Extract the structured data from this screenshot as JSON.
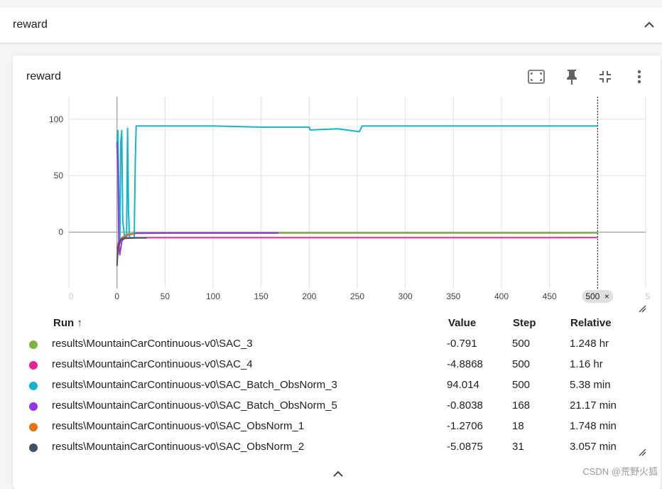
{
  "group": {
    "title": "reward"
  },
  "card": {
    "title": "reward",
    "toolbar": [
      {
        "name": "fit-domain-icon"
      },
      {
        "name": "pin-icon"
      },
      {
        "name": "collapse-chart-icon"
      },
      {
        "name": "more-vert-icon"
      }
    ]
  },
  "chart_data": {
    "type": "line",
    "title": "reward",
    "xlabel": "",
    "ylabel": "",
    "xlim": [
      -50,
      550
    ],
    "ylim": [
      -50,
      120
    ],
    "x_ticks": [
      0,
      50,
      100,
      150,
      200,
      250,
      300,
      350,
      400,
      450
    ],
    "y_ticks": [
      0,
      50,
      100
    ],
    "edge_tick_labels": [
      "0",
      "5"
    ],
    "cursor_step": 500,
    "cursor_label": "500",
    "grid": true,
    "series": [
      {
        "name": "results\\MountainCarContinuous-v0\\SAC_3",
        "color": "#7cb342",
        "x": [
          0,
          2,
          5,
          10,
          20,
          100,
          200,
          300,
          400,
          500
        ],
        "y": [
          -20,
          -10,
          -5,
          -2,
          -0.8,
          -0.8,
          -0.8,
          -0.8,
          -0.8,
          -0.791
        ]
      },
      {
        "name": "results\\MountainCarContinuous-v0\\SAC_4",
        "color": "#e52592",
        "x": [
          0,
          2,
          5,
          10,
          20,
          100,
          200,
          300,
          400,
          500
        ],
        "y": [
          -15,
          -8,
          -5,
          -5,
          -4.9,
          -4.9,
          -4.9,
          -4.9,
          -4.9,
          -4.8868
        ]
      },
      {
        "name": "results\\MountainCarContinuous-v0\\SAC_Batch_ObsNorm_3",
        "color": "#12b5cb",
        "x": [
          0,
          1,
          2,
          3,
          4,
          5,
          6,
          8,
          10,
          11,
          12,
          13,
          14,
          16,
          18,
          19,
          20,
          40,
          100,
          150,
          200,
          201,
          230,
          252,
          255,
          300,
          400,
          500
        ],
        "y": [
          75,
          90,
          30,
          -10,
          80,
          90,
          10,
          -5,
          -5,
          92,
          20,
          -5,
          -5,
          -5,
          -5,
          60,
          94,
          94,
          94,
          93,
          93,
          90.5,
          91.5,
          89,
          94,
          94,
          94,
          94.014
        ]
      },
      {
        "name": "results\\MountainCarContinuous-v0\\SAC_Batch_ObsNorm_5",
        "color": "#9334e6",
        "x": [
          0,
          1,
          2,
          3,
          5,
          10,
          20,
          50,
          100,
          168
        ],
        "y": [
          80,
          60,
          -10,
          -20,
          -8,
          -3,
          -1,
          -0.8,
          -0.8,
          -0.8038
        ]
      },
      {
        "name": "results\\MountainCarContinuous-v0\\SAC_ObsNorm_1",
        "color": "#e8710a",
        "x": [
          0,
          2,
          5,
          10,
          15,
          18
        ],
        "y": [
          -25,
          -12,
          -5,
          -3,
          -1.8,
          -1.2706
        ]
      },
      {
        "name": "results\\MountainCarContinuous-v0\\SAC_ObsNorm_2",
        "color": "#425066",
        "x": [
          0,
          1,
          3,
          5,
          10,
          20,
          31
        ],
        "y": [
          -30,
          -15,
          -8,
          -6,
          -5.5,
          -5.1,
          -5.0875
        ]
      }
    ]
  },
  "legend": {
    "headers": {
      "run": "Run ↑",
      "value": "Value",
      "step": "Step",
      "relative": "Relative"
    },
    "rows": [
      {
        "run": "results\\MountainCarContinuous-v0\\SAC_3",
        "value": "-0.791",
        "step": "500",
        "relative": "1.248 hr",
        "color": "#7cb342"
      },
      {
        "run": "results\\MountainCarContinuous-v0\\SAC_4",
        "value": "-4.8868",
        "step": "500",
        "relative": "1.16 hr",
        "color": "#e52592"
      },
      {
        "run": "results\\MountainCarContinuous-v0\\SAC_Batch_ObsNorm_3",
        "value": "94.014",
        "step": "500",
        "relative": "5.38 min",
        "color": "#12b5cb"
      },
      {
        "run": "results\\MountainCarContinuous-v0\\SAC_Batch_ObsNorm_5",
        "value": "-0.8038",
        "step": "168",
        "relative": "21.17 min",
        "color": "#9334e6"
      },
      {
        "run": "results\\MountainCarContinuous-v0\\SAC_ObsNorm_1",
        "value": "-1.2706",
        "step": "18",
        "relative": "1.748 min",
        "color": "#e8710a"
      },
      {
        "run": "results\\MountainCarContinuous-v0\\SAC_ObsNorm_2",
        "value": "-5.0875",
        "step": "31",
        "relative": "3.057 min",
        "color": "#425066"
      }
    ]
  },
  "watermark": "CSDN @荒野火狐"
}
